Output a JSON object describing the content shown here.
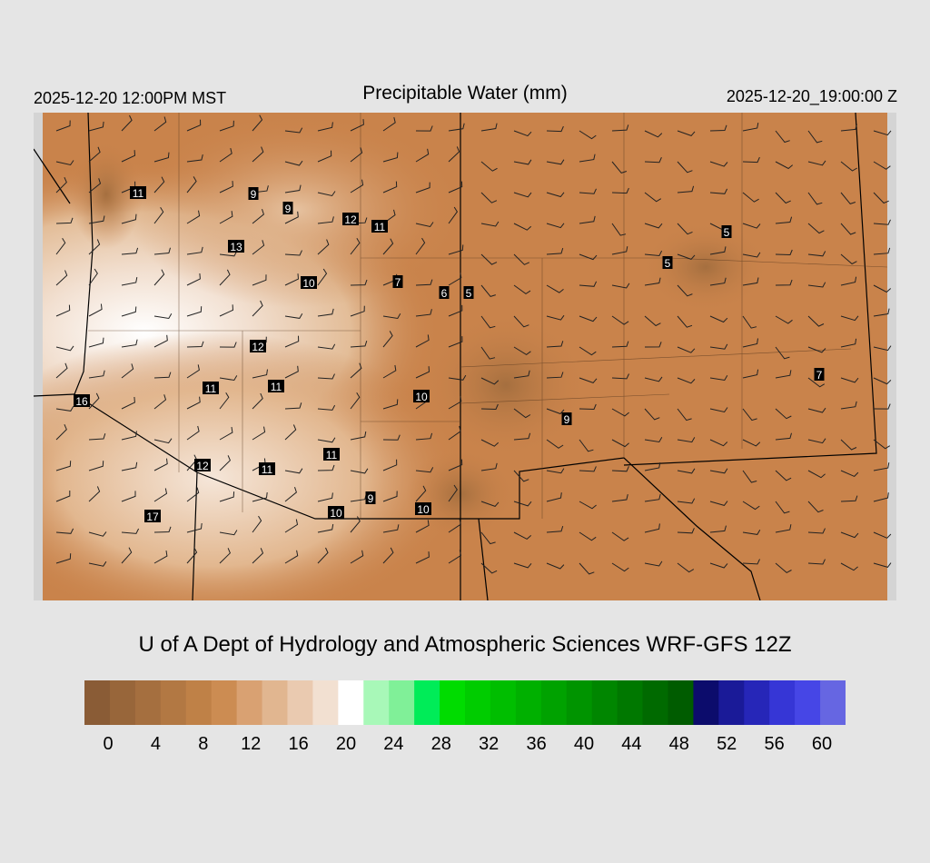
{
  "header": {
    "local_time": "2025-12-20 12:00PM MST",
    "title": "Precipitable Water (mm)",
    "valid_time": "2025-12-20_19:00:00 Z"
  },
  "credit": "U of A Dept of Hydrology and Atmospheric Sciences WRF-GFS 12Z",
  "colorbar": {
    "colors": [
      "#8a5c36",
      "#98663a",
      "#a56f3f",
      "#b27843",
      "#bf8147",
      "#cc8c52",
      "#d9a172",
      "#e1b690",
      "#eacab0",
      "#f2e0d1",
      "#ffffff",
      "#a8f8b8",
      "#80f098",
      "#00ec58",
      "#00dc00",
      "#00cc00",
      "#00be00",
      "#00b000",
      "#00a200",
      "#009400",
      "#008600",
      "#007800",
      "#006a00",
      "#005c00",
      "#0c0c6c",
      "#1a1a98",
      "#2626b8",
      "#3636d6",
      "#4646e6",
      "#6666e2"
    ],
    "labels": [
      "0",
      "4",
      "8",
      "12",
      "16",
      "20",
      "24",
      "28",
      "32",
      "36",
      "40",
      "44",
      "48",
      "52",
      "56",
      "60"
    ]
  },
  "map": {
    "background_color": "#c9834b",
    "station_values": [
      {
        "value": "11"
      },
      {
        "value": "9"
      },
      {
        "value": "9"
      },
      {
        "value": "12"
      },
      {
        "value": "11"
      },
      {
        "value": "13"
      },
      {
        "value": "10"
      },
      {
        "value": "7"
      },
      {
        "value": "6"
      },
      {
        "value": "5"
      },
      {
        "value": "5"
      },
      {
        "value": "5"
      },
      {
        "value": "12"
      },
      {
        "value": "11"
      },
      {
        "value": "11"
      },
      {
        "value": "10"
      },
      {
        "value": "16"
      },
      {
        "value": "7"
      },
      {
        "value": "9"
      },
      {
        "value": "11"
      },
      {
        "value": "12"
      },
      {
        "value": "11"
      },
      {
        "value": "9"
      },
      {
        "value": "10"
      },
      {
        "value": "10"
      },
      {
        "value": "17"
      }
    ]
  }
}
